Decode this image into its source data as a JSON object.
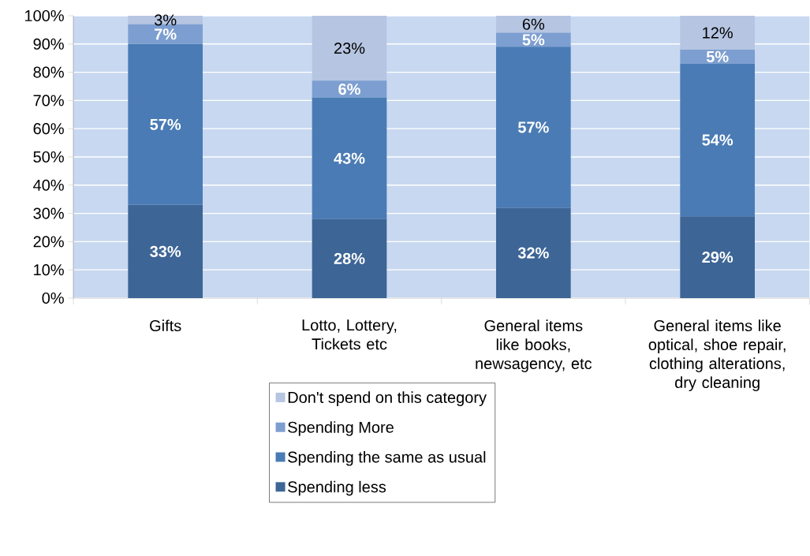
{
  "chart_data": {
    "type": "bar",
    "stacked": true,
    "categories": [
      "Gifts",
      "Lotto, Lottery, Tickets etc",
      "General items like books, newsagency, etc",
      "General items like optical, shoe repair, clothing alterations, dry cleaning"
    ],
    "series": [
      {
        "name": "Spending less",
        "color": "#3d6596",
        "values": [
          33,
          28,
          32,
          29
        ],
        "value_labels": [
          "33%",
          "28%",
          "32%",
          "29%"
        ]
      },
      {
        "name": "Spending the same as usual",
        "color": "#4a7bb5",
        "values": [
          57,
          43,
          57,
          54
        ],
        "value_labels": [
          "57%",
          "43%",
          "57%",
          "54%"
        ]
      },
      {
        "name": "Spending More",
        "color": "#7d9ed0",
        "values": [
          7,
          6,
          5,
          5
        ],
        "value_labels": [
          "7%",
          "6%",
          "5%",
          "5%"
        ]
      },
      {
        "name": "Don't spend on this category",
        "color": "#b6c5e1",
        "values": [
          3,
          23,
          6,
          12
        ],
        "value_labels": [
          "3%",
          "23%",
          "6%",
          "12%"
        ]
      }
    ],
    "ylim": [
      0,
      100
    ],
    "yticks": [
      {
        "value": 0,
        "label": "0%"
      },
      {
        "value": 10,
        "label": "10%"
      },
      {
        "value": 20,
        "label": "20%"
      },
      {
        "value": 30,
        "label": "30%"
      },
      {
        "value": 40,
        "label": "40%"
      },
      {
        "value": 50,
        "label": "50%"
      },
      {
        "value": 60,
        "label": "60%"
      },
      {
        "value": 70,
        "label": "70%"
      },
      {
        "value": 80,
        "label": "80%"
      },
      {
        "value": 90,
        "label": "90%"
      },
      {
        "value": 100,
        "label": "100%"
      }
    ],
    "grid": "y",
    "legend": "bottom"
  }
}
